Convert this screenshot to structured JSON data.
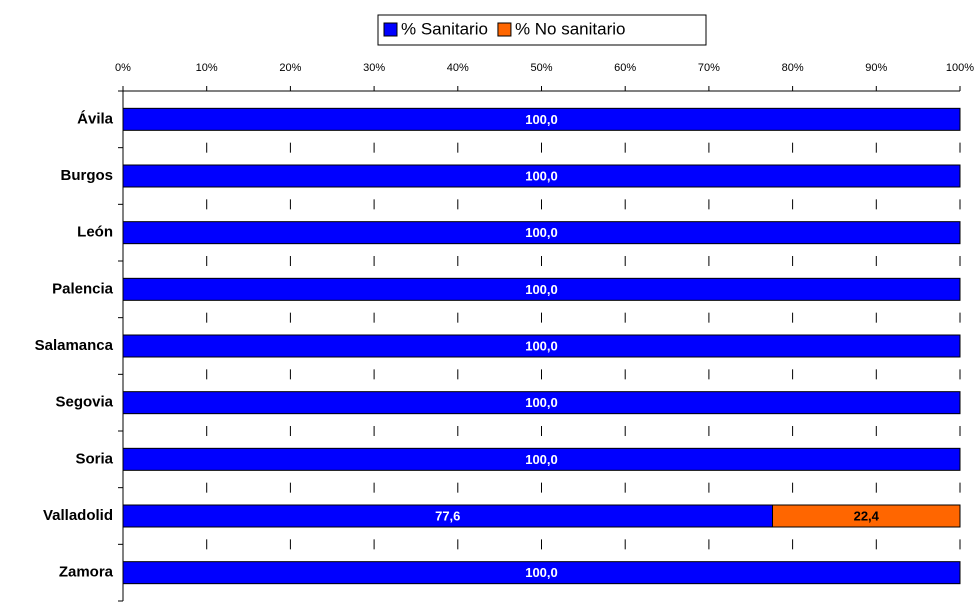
{
  "chart_data": {
    "type": "stacked-bar-horizontal",
    "categories": [
      "Ávila",
      "Burgos",
      "León",
      "Palencia",
      "Salamanca",
      "Segovia",
      "Soria",
      "Valladolid",
      "Zamora"
    ],
    "series": [
      {
        "name": "% Sanitario",
        "color": "#0000ff",
        "values": [
          100,
          100,
          100,
          100,
          100,
          100,
          100,
          77.6,
          100
        ],
        "value_labels": [
          "100,0",
          "100,0",
          "100,0",
          "100,0",
          "100,0",
          "100,0",
          "100,0",
          "77,6",
          "100,0"
        ]
      },
      {
        "name": "% No sanitario",
        "color": "#ff6600",
        "values": [
          0,
          0,
          0,
          0,
          0,
          0,
          0,
          22.4,
          0
        ],
        "value_labels": [
          null,
          null,
          null,
          null,
          null,
          null,
          null,
          "22,4",
          null
        ]
      }
    ],
    "xlim": [
      0,
      100
    ],
    "xticks": [
      {
        "value": 0,
        "label": "0%"
      },
      {
        "value": 10,
        "label": "10%"
      },
      {
        "value": 20,
        "label": "20%"
      },
      {
        "value": 30,
        "label": "30%"
      },
      {
        "value": 40,
        "label": "40%"
      },
      {
        "value": 50,
        "label": "50%"
      },
      {
        "value": 60,
        "label": "60%"
      },
      {
        "value": 70,
        "label": "70%"
      },
      {
        "value": 80,
        "label": "80%"
      },
      {
        "value": 90,
        "label": "90%"
      },
      {
        "value": 100,
        "label": "100%"
      }
    ],
    "legend": "top"
  }
}
